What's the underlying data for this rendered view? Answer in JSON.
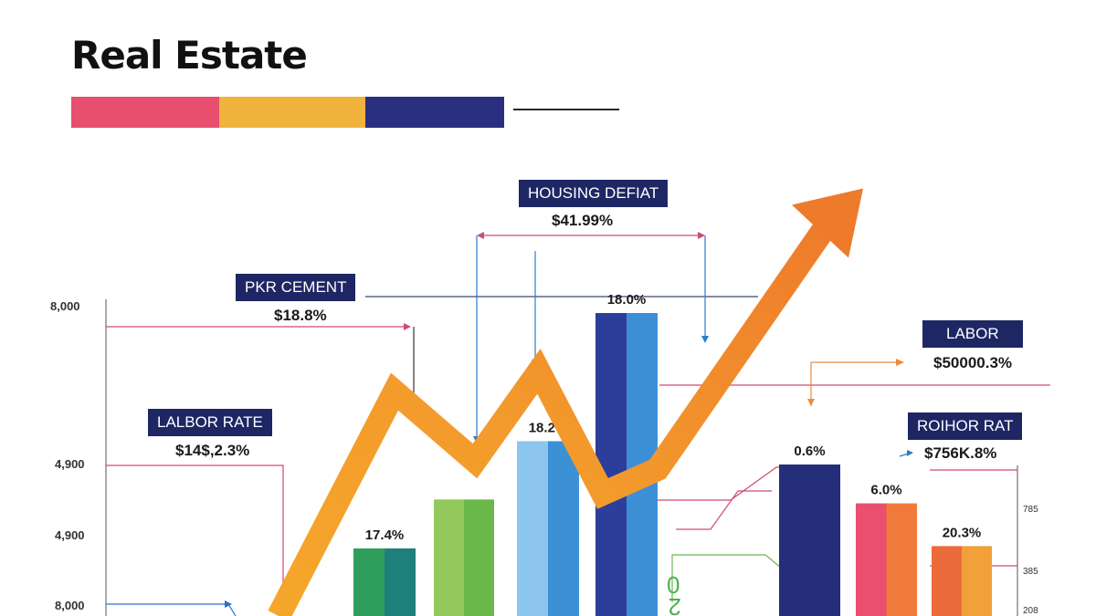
{
  "title": "Real Estate",
  "colors": {
    "accent_pink": "#e84e6e",
    "accent_yellow": "#f0b43c",
    "accent_navy": "#2a2f80",
    "label_bg": "#1e2763",
    "trend_orange": "#ef7d2d",
    "trend_yellow": "#f4a72a"
  },
  "chart_data": {
    "type": "bar",
    "y_ticks": [
      "8,000",
      "4,900",
      "4,900",
      "8,000"
    ],
    "right_ticks": [
      "785",
      "385",
      "208"
    ],
    "bars": [
      {
        "label": "17.4%",
        "value": 17.4,
        "colors": [
          "#2f9e5d",
          "#1f7f7a"
        ]
      },
      {
        "label": "",
        "value": 30,
        "colors": [
          "#93c95a",
          "#6bb84a"
        ]
      },
      {
        "label": "18.2%",
        "value": 45,
        "colors": [
          "#8cc6ee",
          "#3b90d6"
        ]
      },
      {
        "label": "18.0%",
        "value": 78,
        "colors": [
          "#2c3e99",
          "#3d8fd5"
        ]
      },
      {
        "label": "0.6%",
        "value": 39,
        "colors": [
          "#252e7a",
          "#252e7a"
        ]
      },
      {
        "label": "6.0%",
        "value": 29,
        "colors": [
          "#ea4f6f",
          "#f07a3a"
        ]
      },
      {
        "label": "20.3%",
        "value": 18,
        "colors": [
          "#ec6b3a",
          "#f2a03a"
        ]
      }
    ],
    "trend": {
      "name": "",
      "points": [
        0,
        55,
        38,
        60,
        30,
        36,
        99
      ]
    },
    "annotations": [
      {
        "label": "LALBOR RATE",
        "value": "$14$,2.3%"
      },
      {
        "label": "PKR CEMENT",
        "value": "$18.8%"
      },
      {
        "label": "HOUSING DEFIAT",
        "value": "$41.99%"
      },
      {
        "label": "LABOR",
        "value": "$50000.3%"
      },
      {
        "label": "ROIHOR RAT",
        "value": "$756K.8%"
      }
    ],
    "misc_text": [
      "0",
      "2"
    ]
  }
}
